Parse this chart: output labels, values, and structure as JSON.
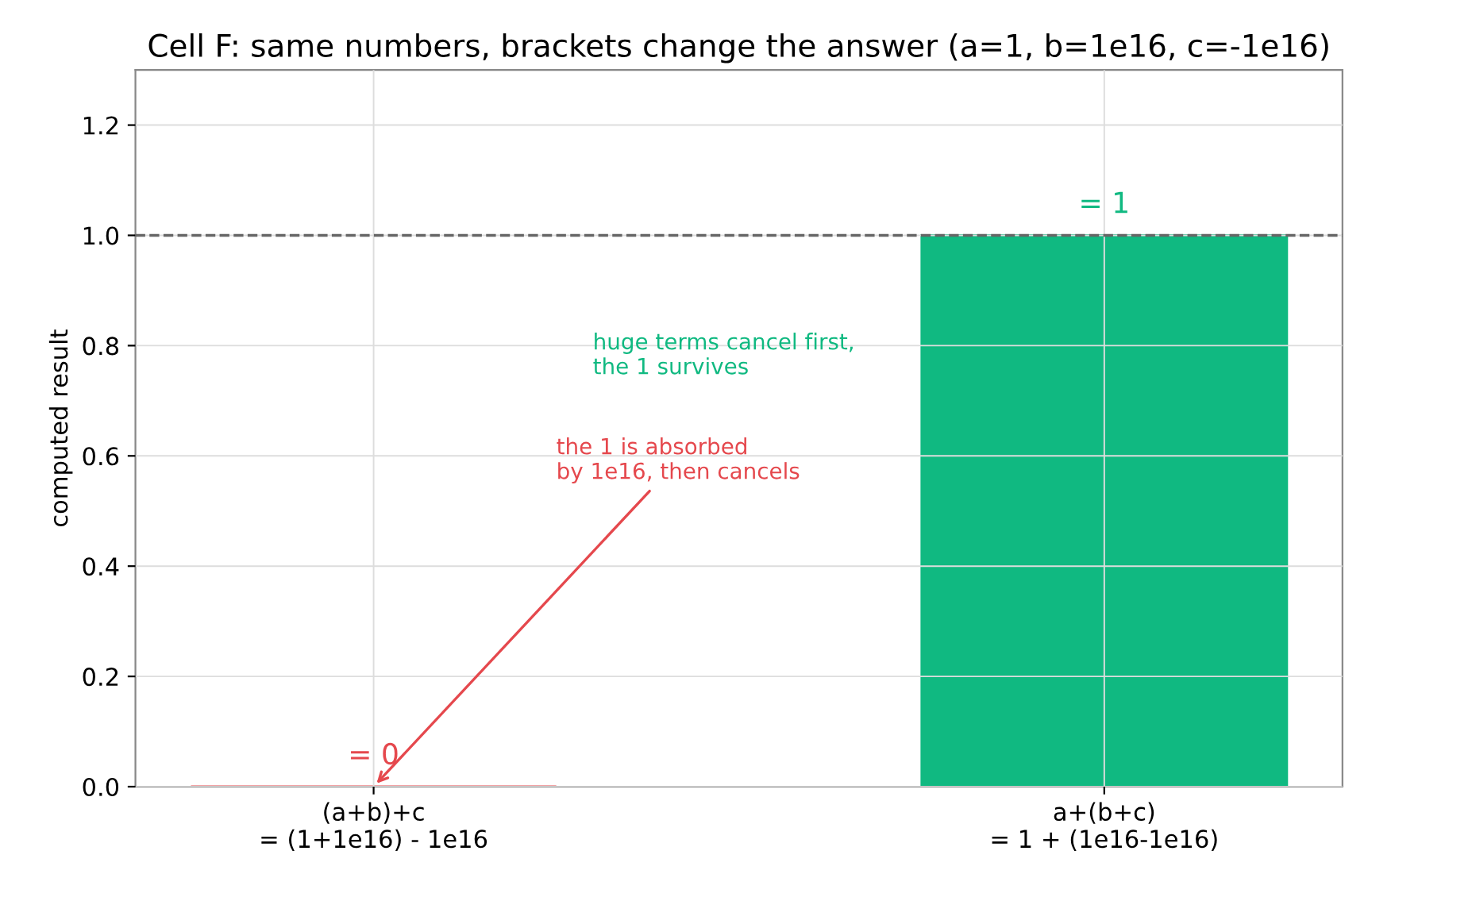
{
  "chart_data": {
    "type": "bar",
    "title": "Cell F: same numbers, brackets change the answer (a=1, b=1e16, c=-1e16)",
    "ylabel": "computed result",
    "categories": [
      "(a+b)+c\n= (1+1e16) - 1e16",
      "a+(b+c)\n= 1 + (1e16-1e16)"
    ],
    "values": [
      0,
      1
    ],
    "colors": [
      "#e5484d",
      "#10b981"
    ],
    "value_labels": [
      "= 0",
      "= 1"
    ],
    "ylim": [
      0,
      1.3
    ],
    "yticks": [
      {
        "value": 0,
        "label": "0.0"
      },
      {
        "value": 0.2,
        "label": "0.2"
      },
      {
        "value": 0.4,
        "label": "0.4"
      },
      {
        "value": 0.6,
        "label": "0.6"
      },
      {
        "value": 0.8,
        "label": "0.8"
      },
      {
        "value": 1,
        "label": "1.0"
      },
      {
        "value": 1.2,
        "label": "1.2"
      }
    ],
    "ref_lines": [
      {
        "axis": "y",
        "value": 1,
        "color": "#666666",
        "line_style": "dashed"
      }
    ],
    "annotations": [
      {
        "text": "the 1 is absorbed\nby 1e16, then cancels",
        "x": "(a+b)+c\n= (1+1e16) - 1e16",
        "y": 0
      },
      "huge terms cancel first,\nthe 1 survives"
    ],
    "grid": true,
    "legend": false
  }
}
